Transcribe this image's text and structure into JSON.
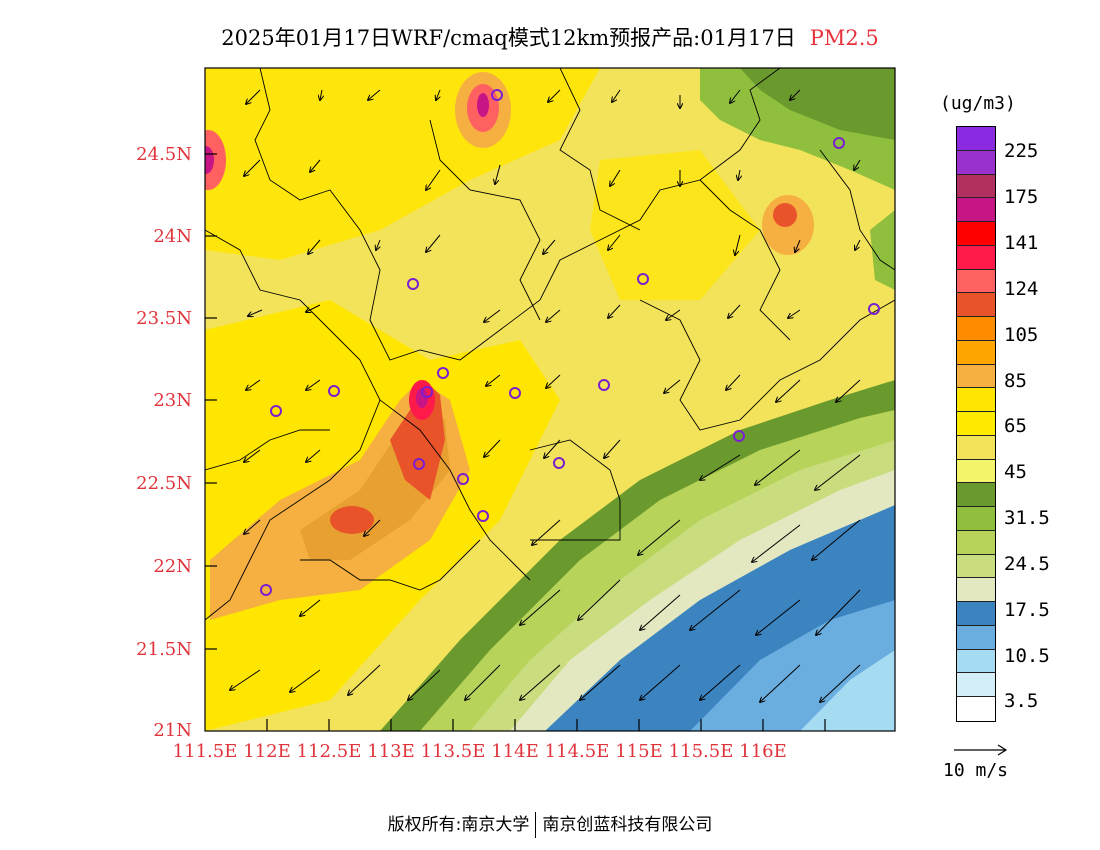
{
  "title": {
    "main": "2025年01月17日WRF/cmaq模式12km预报产品:01月17日",
    "pollutant": "PM2.5"
  },
  "axes": {
    "lat_labels": [
      "24.5N",
      "24N",
      "23.5N",
      "23N",
      "22.5N",
      "22N",
      "21.5N",
      "21N"
    ],
    "lon_labels": [
      "111.5E",
      "112E",
      "112.5E",
      "113E",
      "113.5E",
      "114E",
      "114.5E",
      "115E",
      "115.5E",
      "116E"
    ]
  },
  "legend": {
    "unit": "(ug/m3)",
    "colors": [
      "#8a2be2",
      "#9932cc",
      "#b03060",
      "#c71585",
      "#ff0000",
      "#ff1a4a",
      "#ff6060",
      "#e8532a",
      "#ff8c00",
      "#ffa500",
      "#f5b041",
      "#ffe600",
      "#ffea00",
      "#f3e35a",
      "#f5f56b",
      "#6a9a2e",
      "#8fbf3c",
      "#b7d35a",
      "#c9dc7e",
      "#e4e8c0",
      "#3c84c0",
      "#6aaee0",
      "#a6dcf2",
      "#d4eef8",
      "#ffffff"
    ],
    "labels": [
      "225",
      "175",
      "141",
      "124",
      "105",
      "85",
      "65",
      "45",
      "31.5",
      "24.5",
      "17.5",
      "10.5",
      "3.5"
    ]
  },
  "wind_ref": {
    "label": "10 m/s"
  },
  "footer": {
    "left": "版权所有:南京大学",
    "right": "南京创蓝科技有限公司"
  }
}
